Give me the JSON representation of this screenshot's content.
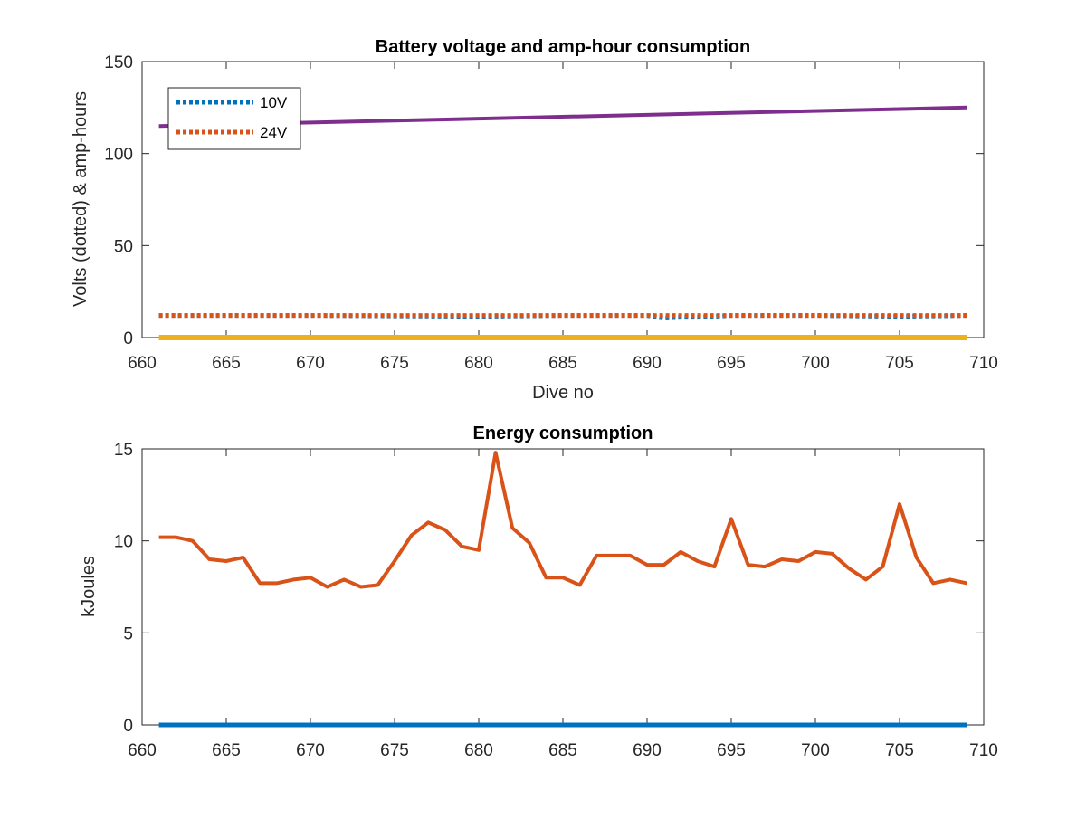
{
  "chart_data": [
    {
      "type": "line",
      "title": "Battery voltage and amp-hour consumption",
      "xlabel": "Dive no",
      "ylabel": "Volts (dotted) & amp-hours",
      "xlim": [
        660,
        710
      ],
      "ylim": [
        0,
        150
      ],
      "xticks": [
        "660",
        "665",
        "670",
        "675",
        "680",
        "685",
        "690",
        "695",
        "700",
        "705",
        "710"
      ],
      "yticks": [
        "0",
        "50",
        "100",
        "150"
      ],
      "legend_position": "top-left",
      "grid": false,
      "series": [
        {
          "name": "10V",
          "style": "dotted",
          "color": "#0072BD",
          "x": [
            661,
            670,
            680,
            685,
            690,
            691,
            692,
            693,
            695,
            700,
            705,
            709
          ],
          "y": [
            12,
            12,
            11.5,
            12,
            12,
            10.5,
            11,
            11,
            12,
            12,
            11.5,
            12
          ]
        },
        {
          "name": "24V",
          "style": "dotted",
          "color": "#D95319",
          "x": [
            661,
            670,
            680,
            690,
            700,
            709
          ],
          "y": [
            12,
            12,
            12,
            12,
            12,
            12
          ]
        },
        {
          "name": "",
          "style": "solid",
          "color": "#7E2F8E",
          "x": [
            661,
            709
          ],
          "y": [
            115,
            125
          ]
        },
        {
          "name": "",
          "style": "solid",
          "color": "#EDB120",
          "x": [
            661,
            709
          ],
          "y": [
            0,
            0
          ]
        }
      ]
    },
    {
      "type": "line",
      "title": "Energy consumption",
      "xlabel": "",
      "ylabel": "kJoules",
      "xlim": [
        660,
        710
      ],
      "ylim": [
        0,
        15
      ],
      "xticks": [
        "660",
        "665",
        "670",
        "675",
        "680",
        "685",
        "690",
        "695",
        "700",
        "705",
        "710"
      ],
      "yticks": [
        "0",
        "5",
        "10",
        "15"
      ],
      "grid": false,
      "series": [
        {
          "name": "",
          "style": "solid",
          "color": "#0072BD",
          "x": [
            661,
            709
          ],
          "y": [
            0,
            0
          ]
        },
        {
          "name": "",
          "style": "solid",
          "color": "#D95319",
          "x": [
            661,
            662,
            663,
            664,
            665,
            666,
            667,
            668,
            669,
            670,
            671,
            672,
            673,
            674,
            675,
            676,
            677,
            678,
            679,
            680,
            681,
            682,
            683,
            684,
            685,
            686,
            687,
            688,
            689,
            690,
            691,
            692,
            693,
            694,
            695,
            696,
            697,
            698,
            699,
            700,
            701,
            702,
            703,
            704,
            705,
            706,
            707,
            708,
            709
          ],
          "y": [
            10.2,
            10.2,
            10.0,
            9.0,
            8.9,
            9.1,
            7.7,
            7.7,
            7.9,
            8.0,
            7.5,
            7.9,
            7.5,
            7.6,
            8.9,
            10.3,
            11.0,
            10.6,
            9.7,
            9.5,
            14.8,
            10.7,
            9.9,
            8.0,
            8.0,
            7.6,
            9.2,
            9.2,
            9.2,
            8.7,
            8.7,
            9.4,
            8.9,
            8.6,
            11.2,
            8.7,
            8.6,
            9.0,
            8.9,
            9.4,
            9.3,
            8.5,
            7.9,
            8.6,
            12.0,
            9.1,
            7.7,
            7.9,
            7.7
          ]
        }
      ]
    }
  ]
}
